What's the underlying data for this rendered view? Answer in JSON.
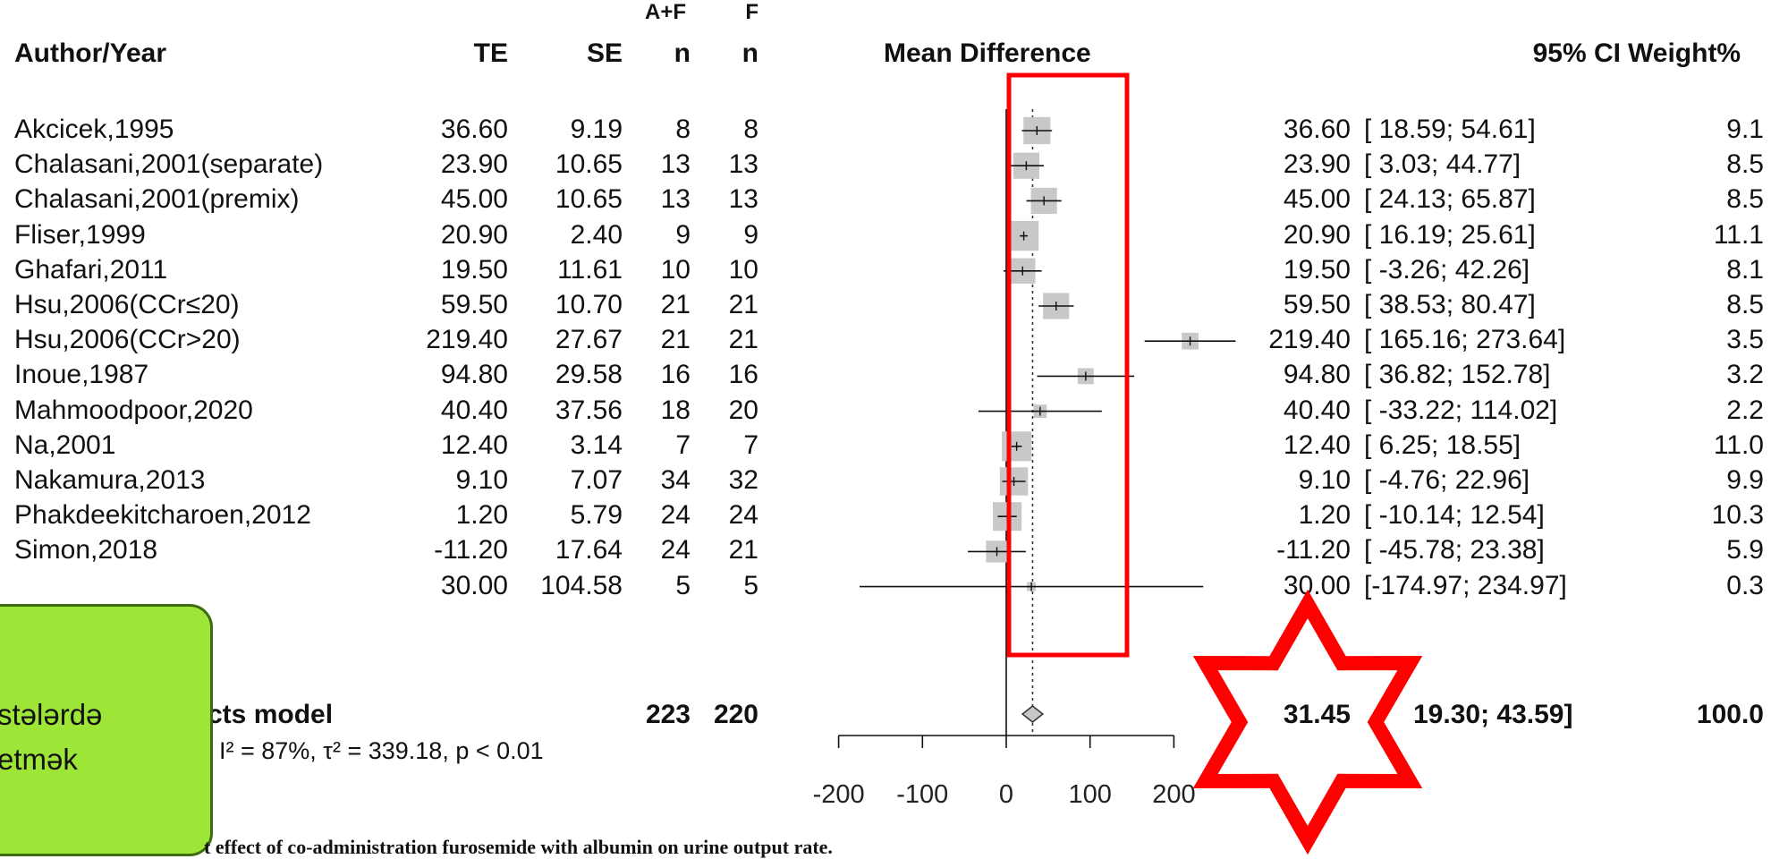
{
  "header": {
    "author": "Author/Year",
    "te": "TE",
    "se": "SE",
    "n1_top": "A+F",
    "n1": "n",
    "n2_top": "F",
    "n2": "n",
    "plot": "Mean Difference",
    "ci": "95% CI",
    "weight": "Weight%"
  },
  "studies": [
    {
      "author": "Akcicek,1995",
      "te": "36.60",
      "se": "9.19",
      "n1": "8",
      "n2": "8",
      "md": "36.60",
      "ci": "[ 18.59; 54.61]",
      "w": "9.1"
    },
    {
      "author": "Chalasani,2001(separate)",
      "te": "23.90",
      "se": "10.65",
      "n1": "13",
      "n2": "13",
      "md": "23.90",
      "ci": "[ 3.03; 44.77]",
      "w": "8.5"
    },
    {
      "author": "Chalasani,2001(premix)",
      "te": "45.00",
      "se": "10.65",
      "n1": "13",
      "n2": "13",
      "md": "45.00",
      "ci": "[ 24.13; 65.87]",
      "w": "8.5"
    },
    {
      "author": "Fliser,1999",
      "te": "20.90",
      "se": "2.40",
      "n1": "9",
      "n2": "9",
      "md": "20.90",
      "ci": "[ 16.19; 25.61]",
      "w": "11.1"
    },
    {
      "author": "Ghafari,2011",
      "te": "19.50",
      "se": "11.61",
      "n1": "10",
      "n2": "10",
      "md": "19.50",
      "ci": "[ -3.26; 42.26]",
      "w": "8.1"
    },
    {
      "author": "Hsu,2006(CCr≤20)",
      "te": "59.50",
      "se": "10.70",
      "n1": "21",
      "n2": "21",
      "md": "59.50",
      "ci": "[ 38.53; 80.47]",
      "w": "8.5"
    },
    {
      "author": "Hsu,2006(CCr>20)",
      "te": "219.40",
      "se": "27.67",
      "n1": "21",
      "n2": "21",
      "md": "219.40",
      "ci": "[ 165.16; 273.64]",
      "w": "3.5"
    },
    {
      "author": "Inoue,1987",
      "te": "94.80",
      "se": "29.58",
      "n1": "16",
      "n2": "16",
      "md": "94.80",
      "ci": "[ 36.82; 152.78]",
      "w": "3.2"
    },
    {
      "author": "Mahmoodpoor,2020",
      "te": "40.40",
      "se": "37.56",
      "n1": "18",
      "n2": "20",
      "md": "40.40",
      "ci": "[ -33.22; 114.02]",
      "w": "2.2"
    },
    {
      "author": "Na,2001",
      "te": "12.40",
      "se": "3.14",
      "n1": "7",
      "n2": "7",
      "md": "12.40",
      "ci": "[ 6.25; 18.55]",
      "w": "11.0"
    },
    {
      "author": "Nakamura,2013",
      "te": "9.10",
      "se": "7.07",
      "n1": "34",
      "n2": "32",
      "md": "9.10",
      "ci": "[ -4.76; 22.96]",
      "w": "9.9"
    },
    {
      "author": "Phakdeekitcharoen,2012",
      "te": "1.20",
      "se": "5.79",
      "n1": "24",
      "n2": "24",
      "md": "1.20",
      "ci": "[ -10.14; 12.54]",
      "w": "10.3"
    },
    {
      "author": "Simon,2018",
      "te": "-11.20",
      "se": "17.64",
      "n1": "24",
      "n2": "21",
      "md": "-11.20",
      "ci": "[ -45.78; 23.38]",
      "w": "5.9"
    },
    {
      "author": "",
      "te": "30.00",
      "se": "104.58",
      "n1": "5",
      "n2": "5",
      "md": "30.00",
      "ci": "[-174.97; 234.97]",
      "w": "0.3"
    }
  ],
  "pooled": {
    "label": "cts model",
    "n1": "223",
    "n2": "220",
    "md": "31.45",
    "ci": "19.30; 43.59]",
    "w": "100.0",
    "heterogeneity": "I² = 87%, τ² = 339.18, p < 0.01"
  },
  "callout": {
    "line1": "stələrdə",
    "line2": "etmək"
  },
  "caption": "t effect of co-administration furosemide with albumin on urine output rate.",
  "annotation_colors": {
    "highlight_box": "#ff0000",
    "star": "#ff0000",
    "callout_bg": "#9de536"
  },
  "chart_data": {
    "type": "forest",
    "xlabel": "",
    "xlim": [
      -200,
      200
    ],
    "xticks": [
      -200,
      -100,
      0,
      100,
      200
    ],
    "null_line": 0,
    "pooled_line": 31.45,
    "studies": [
      {
        "label": "Akcicek,1995",
        "est": 36.6,
        "lo": 18.59,
        "hi": 54.61,
        "weight": 9.1
      },
      {
        "label": "Chalasani,2001(separate)",
        "est": 23.9,
        "lo": 3.03,
        "hi": 44.77,
        "weight": 8.5
      },
      {
        "label": "Chalasani,2001(premix)",
        "est": 45.0,
        "lo": 24.13,
        "hi": 65.87,
        "weight": 8.5
      },
      {
        "label": "Fliser,1999",
        "est": 20.9,
        "lo": 16.19,
        "hi": 25.61,
        "weight": 11.1
      },
      {
        "label": "Ghafari,2011",
        "est": 19.5,
        "lo": -3.26,
        "hi": 42.26,
        "weight": 8.1
      },
      {
        "label": "Hsu,2006(CCr≤20)",
        "est": 59.5,
        "lo": 38.53,
        "hi": 80.47,
        "weight": 8.5
      },
      {
        "label": "Hsu,2006(CCr>20)",
        "est": 219.4,
        "lo": 165.16,
        "hi": 273.64,
        "weight": 3.5
      },
      {
        "label": "Inoue,1987",
        "est": 94.8,
        "lo": 36.82,
        "hi": 152.78,
        "weight": 3.2
      },
      {
        "label": "Mahmoodpoor,2020",
        "est": 40.4,
        "lo": -33.22,
        "hi": 114.02,
        "weight": 2.2
      },
      {
        "label": "Na,2001",
        "est": 12.4,
        "lo": 6.25,
        "hi": 18.55,
        "weight": 11.0
      },
      {
        "label": "Nakamura,2013",
        "est": 9.1,
        "lo": -4.76,
        "hi": 22.96,
        "weight": 9.9
      },
      {
        "label": "Phakdeekitcharoen,2012",
        "est": 1.2,
        "lo": -10.14,
        "hi": 12.54,
        "weight": 10.3
      },
      {
        "label": "Simon,2018",
        "est": -11.2,
        "lo": -45.78,
        "hi": 23.38,
        "weight": 5.9
      },
      {
        "label": "",
        "est": 30.0,
        "lo": -174.97,
        "hi": 234.97,
        "weight": 0.3
      }
    ],
    "pooled": {
      "est": 31.45,
      "lo": 19.3,
      "hi": 43.59,
      "weight": 100.0
    }
  }
}
